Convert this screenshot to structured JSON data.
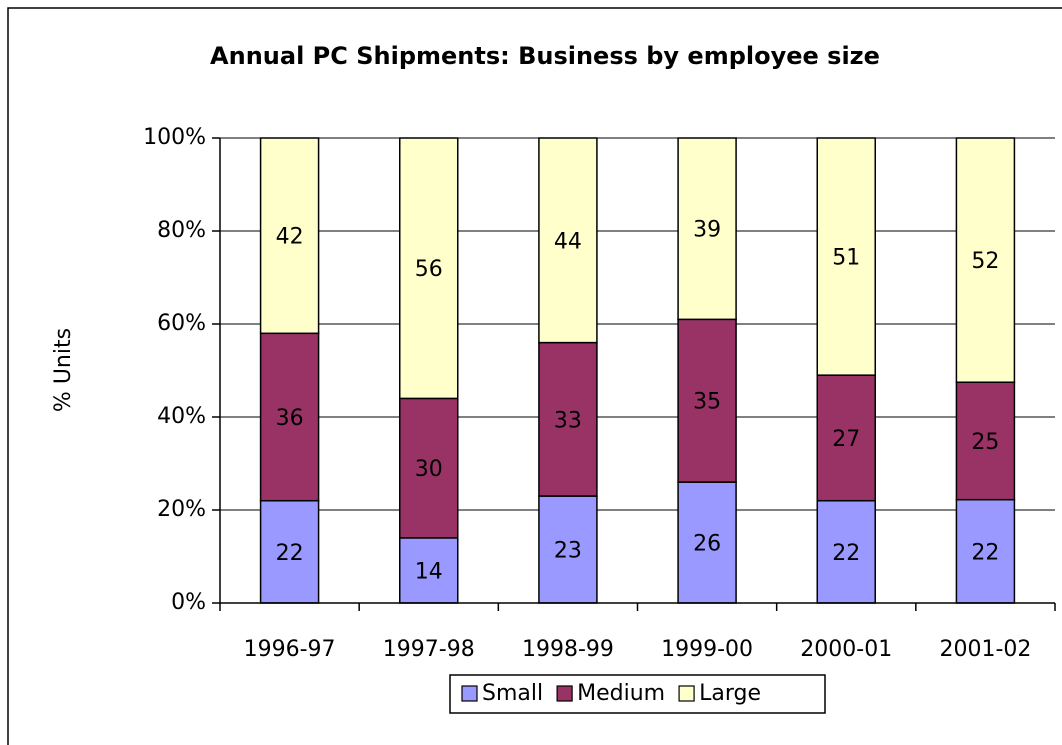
{
  "chart_data": {
    "type": "bar",
    "stacked": "percent",
    "title": "Annual PC Shipments: Business by employee size",
    "ylabel": "% Units",
    "categories": [
      "1996-97",
      "1997-98",
      "1998-99",
      "1999-00",
      "2000-01",
      "2001-02"
    ],
    "series": [
      {
        "name": "Small",
        "color": "#9999ff",
        "values": [
          22,
          14,
          23,
          26,
          22,
          22
        ]
      },
      {
        "name": "Medium",
        "color": "#993366",
        "values": [
          36,
          30,
          33,
          35,
          27,
          25
        ]
      },
      {
        "name": "Large",
        "color": "#ffffcc",
        "values": [
          42,
          56,
          44,
          39,
          51,
          52
        ]
      }
    ],
    "ylim": [
      0,
      100
    ],
    "yticks": [
      {
        "value": 0,
        "label": "0%"
      },
      {
        "value": 20,
        "label": "20%"
      },
      {
        "value": 40,
        "label": "40%"
      },
      {
        "value": 60,
        "label": "60%"
      },
      {
        "value": 80,
        "label": "80%"
      },
      {
        "value": 100,
        "label": "100%"
      }
    ],
    "grid": true,
    "legend": "bottom"
  }
}
